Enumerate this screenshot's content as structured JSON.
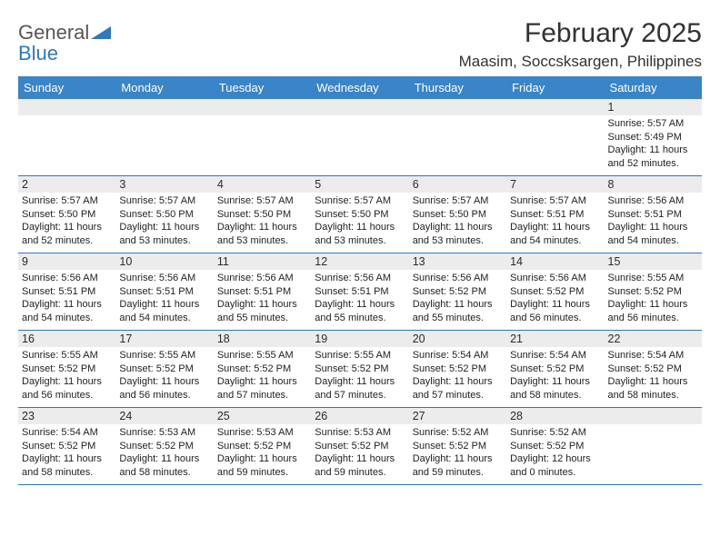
{
  "brand": {
    "word1": "General",
    "word2": "Blue"
  },
  "colors": {
    "header_bg": "#3a84c8",
    "band_bg": "#ececec",
    "rule": "#2e78c0",
    "brand_blue": "#2e78c0",
    "text": "#323232"
  },
  "header": {
    "month_title": "February 2025",
    "location": "Maasim, Soccsksargen, Philippines"
  },
  "days_of_week": [
    "Sunday",
    "Monday",
    "Tuesday",
    "Wednesday",
    "Thursday",
    "Friday",
    "Saturday"
  ],
  "weeks": [
    [
      {
        "n": "",
        "sr": "",
        "ss": "",
        "dl": ""
      },
      {
        "n": "",
        "sr": "",
        "ss": "",
        "dl": ""
      },
      {
        "n": "",
        "sr": "",
        "ss": "",
        "dl": ""
      },
      {
        "n": "",
        "sr": "",
        "ss": "",
        "dl": ""
      },
      {
        "n": "",
        "sr": "",
        "ss": "",
        "dl": ""
      },
      {
        "n": "",
        "sr": "",
        "ss": "",
        "dl": ""
      },
      {
        "n": "1",
        "sr": "Sunrise: 5:57 AM",
        "ss": "Sunset: 5:49 PM",
        "dl": "Daylight: 11 hours and 52 minutes."
      }
    ],
    [
      {
        "n": "2",
        "sr": "Sunrise: 5:57 AM",
        "ss": "Sunset: 5:50 PM",
        "dl": "Daylight: 11 hours and 52 minutes."
      },
      {
        "n": "3",
        "sr": "Sunrise: 5:57 AM",
        "ss": "Sunset: 5:50 PM",
        "dl": "Daylight: 11 hours and 53 minutes."
      },
      {
        "n": "4",
        "sr": "Sunrise: 5:57 AM",
        "ss": "Sunset: 5:50 PM",
        "dl": "Daylight: 11 hours and 53 minutes."
      },
      {
        "n": "5",
        "sr": "Sunrise: 5:57 AM",
        "ss": "Sunset: 5:50 PM",
        "dl": "Daylight: 11 hours and 53 minutes."
      },
      {
        "n": "6",
        "sr": "Sunrise: 5:57 AM",
        "ss": "Sunset: 5:50 PM",
        "dl": "Daylight: 11 hours and 53 minutes."
      },
      {
        "n": "7",
        "sr": "Sunrise: 5:57 AM",
        "ss": "Sunset: 5:51 PM",
        "dl": "Daylight: 11 hours and 54 minutes."
      },
      {
        "n": "8",
        "sr": "Sunrise: 5:56 AM",
        "ss": "Sunset: 5:51 PM",
        "dl": "Daylight: 11 hours and 54 minutes."
      }
    ],
    [
      {
        "n": "9",
        "sr": "Sunrise: 5:56 AM",
        "ss": "Sunset: 5:51 PM",
        "dl": "Daylight: 11 hours and 54 minutes."
      },
      {
        "n": "10",
        "sr": "Sunrise: 5:56 AM",
        "ss": "Sunset: 5:51 PM",
        "dl": "Daylight: 11 hours and 54 minutes."
      },
      {
        "n": "11",
        "sr": "Sunrise: 5:56 AM",
        "ss": "Sunset: 5:51 PM",
        "dl": "Daylight: 11 hours and 55 minutes."
      },
      {
        "n": "12",
        "sr": "Sunrise: 5:56 AM",
        "ss": "Sunset: 5:51 PM",
        "dl": "Daylight: 11 hours and 55 minutes."
      },
      {
        "n": "13",
        "sr": "Sunrise: 5:56 AM",
        "ss": "Sunset: 5:52 PM",
        "dl": "Daylight: 11 hours and 55 minutes."
      },
      {
        "n": "14",
        "sr": "Sunrise: 5:56 AM",
        "ss": "Sunset: 5:52 PM",
        "dl": "Daylight: 11 hours and 56 minutes."
      },
      {
        "n": "15",
        "sr": "Sunrise: 5:55 AM",
        "ss": "Sunset: 5:52 PM",
        "dl": "Daylight: 11 hours and 56 minutes."
      }
    ],
    [
      {
        "n": "16",
        "sr": "Sunrise: 5:55 AM",
        "ss": "Sunset: 5:52 PM",
        "dl": "Daylight: 11 hours and 56 minutes."
      },
      {
        "n": "17",
        "sr": "Sunrise: 5:55 AM",
        "ss": "Sunset: 5:52 PM",
        "dl": "Daylight: 11 hours and 56 minutes."
      },
      {
        "n": "18",
        "sr": "Sunrise: 5:55 AM",
        "ss": "Sunset: 5:52 PM",
        "dl": "Daylight: 11 hours and 57 minutes."
      },
      {
        "n": "19",
        "sr": "Sunrise: 5:55 AM",
        "ss": "Sunset: 5:52 PM",
        "dl": "Daylight: 11 hours and 57 minutes."
      },
      {
        "n": "20",
        "sr": "Sunrise: 5:54 AM",
        "ss": "Sunset: 5:52 PM",
        "dl": "Daylight: 11 hours and 57 minutes."
      },
      {
        "n": "21",
        "sr": "Sunrise: 5:54 AM",
        "ss": "Sunset: 5:52 PM",
        "dl": "Daylight: 11 hours and 58 minutes."
      },
      {
        "n": "22",
        "sr": "Sunrise: 5:54 AM",
        "ss": "Sunset: 5:52 PM",
        "dl": "Daylight: 11 hours and 58 minutes."
      }
    ],
    [
      {
        "n": "23",
        "sr": "Sunrise: 5:54 AM",
        "ss": "Sunset: 5:52 PM",
        "dl": "Daylight: 11 hours and 58 minutes."
      },
      {
        "n": "24",
        "sr": "Sunrise: 5:53 AM",
        "ss": "Sunset: 5:52 PM",
        "dl": "Daylight: 11 hours and 58 minutes."
      },
      {
        "n": "25",
        "sr": "Sunrise: 5:53 AM",
        "ss": "Sunset: 5:52 PM",
        "dl": "Daylight: 11 hours and 59 minutes."
      },
      {
        "n": "26",
        "sr": "Sunrise: 5:53 AM",
        "ss": "Sunset: 5:52 PM",
        "dl": "Daylight: 11 hours and 59 minutes."
      },
      {
        "n": "27",
        "sr": "Sunrise: 5:52 AM",
        "ss": "Sunset: 5:52 PM",
        "dl": "Daylight: 11 hours and 59 minutes."
      },
      {
        "n": "28",
        "sr": "Sunrise: 5:52 AM",
        "ss": "Sunset: 5:52 PM",
        "dl": "Daylight: 12 hours and 0 minutes."
      },
      {
        "n": "",
        "sr": "",
        "ss": "",
        "dl": ""
      }
    ]
  ]
}
